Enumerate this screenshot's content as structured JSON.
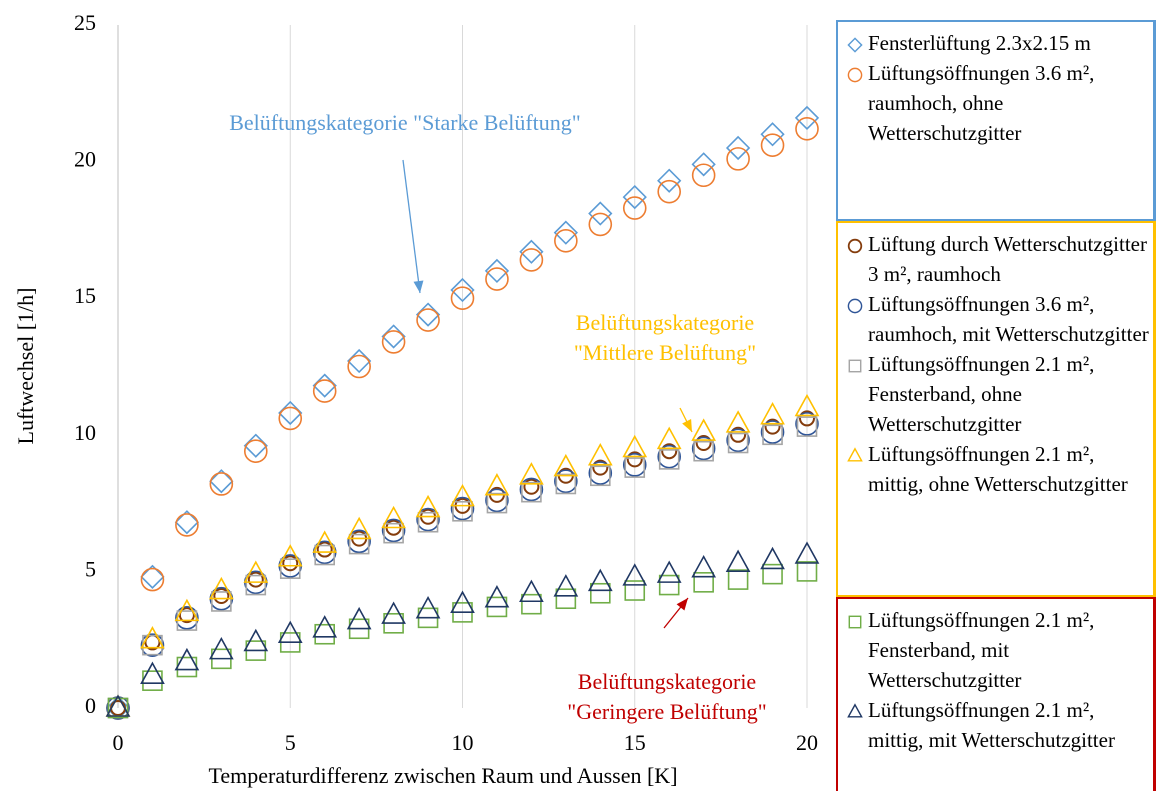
{
  "chart_data": {
    "type": "scatter",
    "xlabel": "Temperaturdifferenz zwischen Raum und Aussen [K]",
    "ylabel": "Luftwechsel [1/h]",
    "x": [
      0,
      1,
      2,
      3,
      4,
      5,
      6,
      7,
      8,
      9,
      10,
      11,
      12,
      13,
      14,
      15,
      16,
      17,
      18,
      19,
      20
    ],
    "xlim": [
      0,
      20
    ],
    "xticks": [
      0,
      5,
      10,
      15,
      20
    ],
    "ylim": [
      0,
      25
    ],
    "yticks": [
      0,
      5,
      10,
      15,
      20,
      25
    ],
    "grid": "x",
    "series": [
      {
        "name": "Fensterlüftung 2.3x2.15 m",
        "color": "#5b9bd5",
        "marker": "diamond",
        "values": [
          0,
          4.8,
          6.8,
          8.3,
          9.6,
          10.8,
          11.8,
          12.7,
          13.6,
          14.4,
          15.3,
          16.0,
          16.7,
          17.4,
          18.1,
          18.7,
          19.3,
          19.9,
          20.5,
          21.0,
          21.6
        ]
      },
      {
        "name": "Lüftungsöffnungen 3.6 m², raumhoch, ohne Wetterschutzgitter",
        "color": "#ed7d31",
        "marker": "circle",
        "values": [
          0,
          4.7,
          6.7,
          8.2,
          9.4,
          10.6,
          11.6,
          12.5,
          13.4,
          14.2,
          15.0,
          15.7,
          16.4,
          17.1,
          17.7,
          18.3,
          18.9,
          19.5,
          20.1,
          20.6,
          21.2
        ]
      },
      {
        "name": "Lüftung durch Wetterschutzgitter 3 m², raumhoch",
        "color": "#843c0c",
        "marker": "small-circle",
        "values": [
          0,
          2.4,
          3.4,
          4.1,
          4.7,
          5.3,
          5.8,
          6.2,
          6.6,
          7.0,
          7.4,
          7.8,
          8.1,
          8.5,
          8.8,
          9.1,
          9.4,
          9.7,
          10.0,
          10.3,
          10.6
        ]
      },
      {
        "name": "Lüftungsöffnungen 3.6 m², raumhoch, mit Wetterschutzgitter",
        "color": "#2f5597",
        "marker": "circle",
        "values": [
          0,
          2.3,
          3.3,
          4.0,
          4.6,
          5.2,
          5.7,
          6.1,
          6.5,
          6.9,
          7.3,
          7.6,
          8.0,
          8.3,
          8.6,
          8.9,
          9.2,
          9.5,
          9.8,
          10.1,
          10.4
        ]
      },
      {
        "name": "Lüftungsöffnungen 2.1 m², Fensterband, ohne Wetterschutzgitter",
        "color": "#a5a5a5",
        "marker": "square",
        "values": [
          0,
          2.3,
          3.2,
          3.9,
          4.5,
          5.1,
          5.6,
          6.0,
          6.4,
          6.8,
          7.2,
          7.5,
          7.9,
          8.2,
          8.5,
          8.8,
          9.1,
          9.4,
          9.7,
          10.0,
          10.3
        ]
      },
      {
        "name": "Lüftungsöffnungen 2.1 m², mittig, ohne Wetterschutzgitter",
        "color": "#ffc000",
        "marker": "triangle",
        "values": [
          0,
          2.5,
          3.5,
          4.3,
          4.9,
          5.5,
          6.0,
          6.5,
          6.9,
          7.3,
          7.7,
          8.1,
          8.5,
          8.8,
          9.2,
          9.5,
          9.8,
          10.1,
          10.4,
          10.7,
          11.0
        ]
      },
      {
        "name": "Lüftungsöffnungen 2.1 m², Fensterband, mit Wetterschutzgitter",
        "color": "#70ad47",
        "marker": "square",
        "values": [
          0,
          1.0,
          1.5,
          1.8,
          2.1,
          2.4,
          2.7,
          2.9,
          3.1,
          3.3,
          3.5,
          3.7,
          3.8,
          4.0,
          4.2,
          4.3,
          4.5,
          4.6,
          4.7,
          4.9,
          5.0
        ]
      },
      {
        "name": "Lüftungsöffnungen 2.1 m², mittig, mit Wetterschutzgitter",
        "color": "#203864",
        "marker": "triangle",
        "values": [
          0,
          1.2,
          1.7,
          2.1,
          2.4,
          2.7,
          2.9,
          3.2,
          3.4,
          3.6,
          3.8,
          4.0,
          4.2,
          4.4,
          4.6,
          4.8,
          4.9,
          5.1,
          5.3,
          5.4,
          5.6
        ]
      }
    ],
    "legend_groups": [
      {
        "color": "#5b9bd5",
        "series": [
          0,
          1
        ]
      },
      {
        "color": "#ffc000",
        "series": [
          2,
          3,
          4,
          5
        ]
      },
      {
        "color": "#c00000",
        "series": [
          6,
          7
        ]
      }
    ],
    "annotations": [
      {
        "lines": [
          "Belüftungskategorie \"Starke Belüftung\""
        ],
        "color": "#5b9bd5"
      },
      {
        "lines": [
          "Belüftungskategorie",
          "\"Mittlere Belüftung\""
        ],
        "color": "#ffc000"
      },
      {
        "lines": [
          "Belüftungskategorie",
          "\"Geringere Belüftung\""
        ],
        "color": "#c00000"
      }
    ]
  }
}
